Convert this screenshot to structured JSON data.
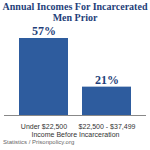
{
  "chart_data": {
    "type": "bar",
    "title": "Annual Incomes For Incarcerated Men Prior",
    "x_label": "Income Before Incarceration",
    "source": "Statistics / Prisonpolicy.org",
    "categories": [
      "Under $22,500",
      "$22,500 - $37,499"
    ],
    "values": [
      57,
      21
    ],
    "value_labels": [
      "57%",
      "21%"
    ],
    "data_labels": true,
    "color": "#2e5c9e",
    "ylim": [
      0,
      57
    ],
    "tick_labels": "x",
    "grid": false
  }
}
